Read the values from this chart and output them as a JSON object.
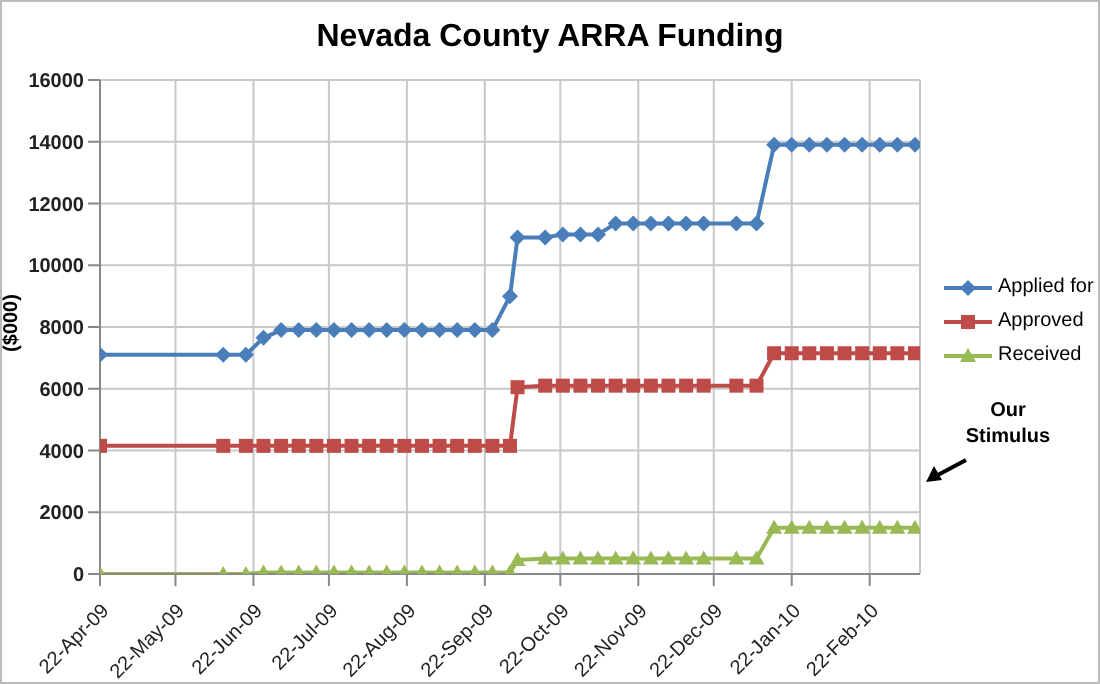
{
  "chart_data": {
    "type": "line",
    "title": "Nevada County ARRA Funding",
    "ylabel": "($000)",
    "x": [
      "2009-04-22",
      "2009-06-10",
      "2009-06-19",
      "2009-06-26",
      "2009-07-03",
      "2009-07-10",
      "2009-07-17",
      "2009-07-24",
      "2009-07-31",
      "2009-08-07",
      "2009-08-14",
      "2009-08-21",
      "2009-08-28",
      "2009-09-04",
      "2009-09-11",
      "2009-09-18",
      "2009-09-25",
      "2009-10-02",
      "2009-10-05",
      "2009-10-16",
      "2009-10-23",
      "2009-10-30",
      "2009-11-06",
      "2009-11-13",
      "2009-11-20",
      "2009-11-27",
      "2009-12-04",
      "2009-12-11",
      "2009-12-18",
      "2009-12-31",
      "2010-01-08",
      "2010-01-15",
      "2010-01-22",
      "2010-01-29",
      "2010-02-05",
      "2010-02-12",
      "2010-02-19",
      "2010-02-26",
      "2010-03-05",
      "2010-03-12"
    ],
    "series": [
      {
        "name": "Applied for",
        "color": "#4a7ebb",
        "marker": "diamond",
        "values": [
          7100,
          7100,
          7100,
          7650,
          7900,
          7900,
          7900,
          7900,
          7900,
          7900,
          7900,
          7900,
          7900,
          7900,
          7900,
          7900,
          7900,
          9000,
          10900,
          10900,
          11000,
          11000,
          11000,
          11350,
          11350,
          11350,
          11350,
          11350,
          11350,
          11350,
          11350,
          13900,
          13900,
          13900,
          13900,
          13900,
          13900,
          13900,
          13900,
          13900
        ]
      },
      {
        "name": "Approved",
        "color": "#be4b48",
        "marker": "square",
        "values": [
          4150,
          4150,
          4150,
          4150,
          4150,
          4150,
          4150,
          4150,
          4150,
          4150,
          4150,
          4150,
          4150,
          4150,
          4150,
          4150,
          4150,
          4150,
          6050,
          6100,
          6100,
          6100,
          6100,
          6100,
          6100,
          6100,
          6100,
          6100,
          6100,
          6100,
          6100,
          7150,
          7150,
          7150,
          7150,
          7150,
          7150,
          7150,
          7150,
          7150
        ]
      },
      {
        "name": "Received",
        "color": "#98b954",
        "marker": "triangle",
        "values": [
          0,
          0,
          0,
          50,
          50,
          50,
          50,
          50,
          50,
          50,
          50,
          50,
          50,
          50,
          50,
          50,
          50,
          50,
          450,
          500,
          500,
          500,
          500,
          500,
          500,
          500,
          500,
          500,
          500,
          500,
          500,
          1500,
          1500,
          1500,
          1500,
          1500,
          1500,
          1500,
          1500,
          1500
        ]
      }
    ],
    "xlim": [
      "2009-04-22",
      "2010-03-14"
    ],
    "xticks": [
      {
        "value": "2009-04-22",
        "label": "22-Apr-09"
      },
      {
        "value": "2009-05-22",
        "label": "22-May-09"
      },
      {
        "value": "2009-06-22",
        "label": "22-Jun-09"
      },
      {
        "value": "2009-07-22",
        "label": "22-Jul-09"
      },
      {
        "value": "2009-08-22",
        "label": "22-Aug-09"
      },
      {
        "value": "2009-09-22",
        "label": "22-Sep-09"
      },
      {
        "value": "2009-10-22",
        "label": "22-Oct-09"
      },
      {
        "value": "2009-11-22",
        "label": "22-Nov-09"
      },
      {
        "value": "2009-12-22",
        "label": "22-Dec-09"
      },
      {
        "value": "2010-01-22",
        "label": "22-Jan-10"
      },
      {
        "value": "2010-02-22",
        "label": "22-Feb-10"
      }
    ],
    "ylim": [
      0,
      16000
    ],
    "yticks": [
      0,
      2000,
      4000,
      6000,
      8000,
      10000,
      12000,
      14000,
      16000
    ],
    "grid": true,
    "legend": "right",
    "line_style": "solid",
    "annotations": [
      "Our Stimulus"
    ]
  }
}
